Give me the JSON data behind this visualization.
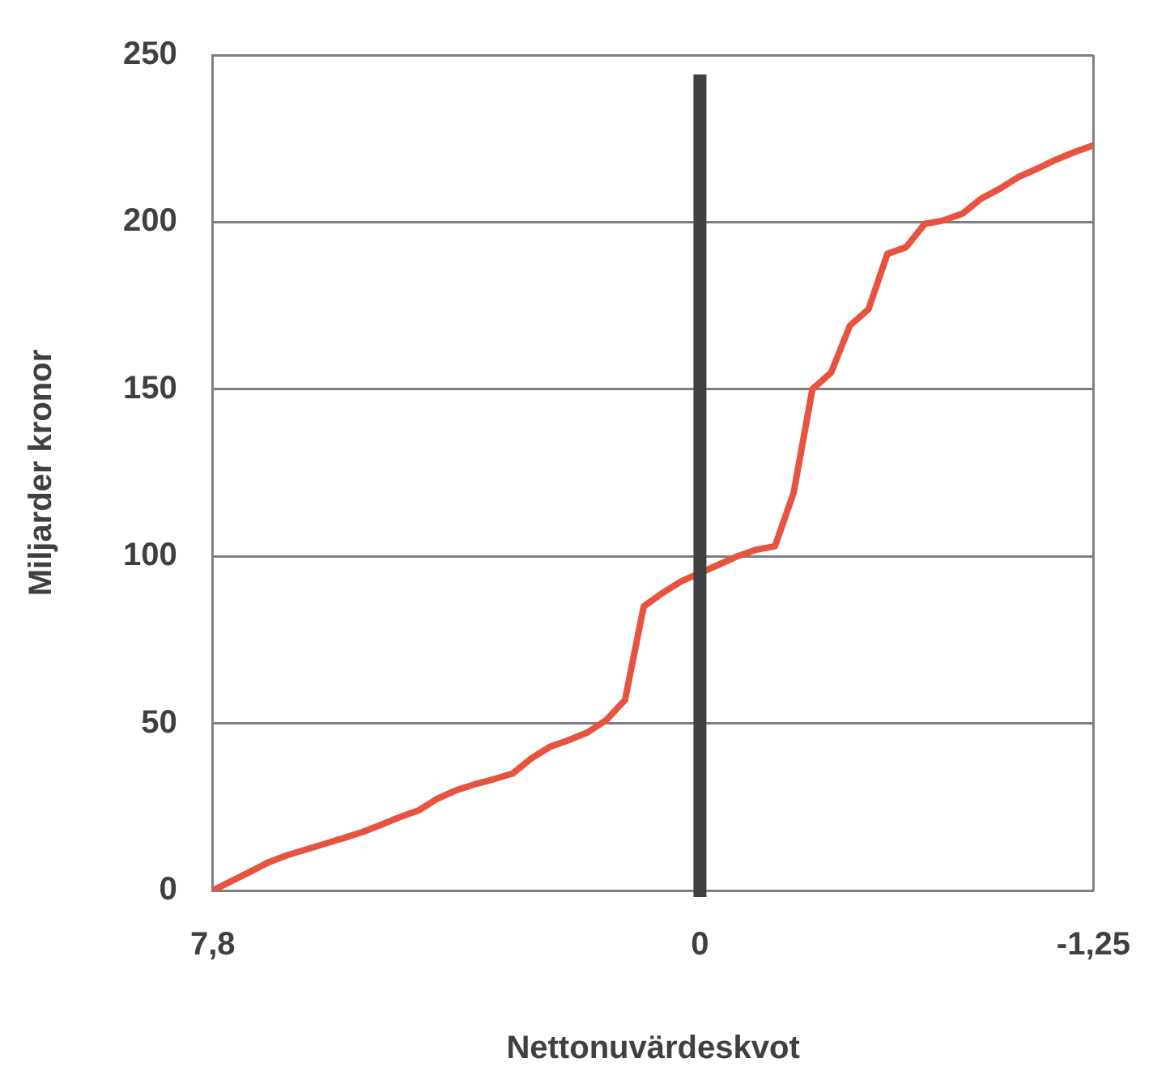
{
  "chart_data": {
    "type": "line",
    "xlabel": "Nettonuvärdeskvot",
    "ylabel": "Miljarder kronor",
    "categories": [
      "7,8",
      null,
      null,
      null,
      null,
      null,
      null,
      null,
      null,
      null,
      null,
      null,
      null,
      null,
      null,
      null,
      null,
      null,
      null,
      null,
      null,
      null,
      null,
      null,
      null,
      null,
      "0",
      null,
      null,
      null,
      null,
      null,
      null,
      null,
      null,
      null,
      null,
      null,
      null,
      null,
      null,
      null,
      null,
      null,
      null,
      null,
      null,
      "-1,25"
    ],
    "series": [
      {
        "color": "#e8533f",
        "values": [
          0,
          2.8,
          5.6,
          8.5,
          10.6,
          12.3,
          14,
          15.7,
          17.5,
          19.7,
          22,
          24,
          27.5,
          30,
          31.8,
          33.3,
          35,
          39.5,
          43,
          45,
          47.3,
          51,
          57,
          85,
          89,
          92.5,
          95,
          97.5,
          100,
          102,
          103,
          119,
          150,
          155,
          169,
          174,
          190.5,
          192.5,
          199.5,
          200.5,
          202.5,
          207,
          210,
          213.5,
          216,
          218.7,
          221,
          223
        ]
      }
    ],
    "ylim": [
      0,
      250
    ],
    "yticks": [
      0,
      50,
      100,
      150,
      200,
      250
    ],
    "grid": "y",
    "legend": false,
    "marker": "none",
    "line_style": "solid",
    "ref_lines": [
      {
        "axis": "x",
        "value": "0",
        "color": "#404040"
      }
    ]
  }
}
